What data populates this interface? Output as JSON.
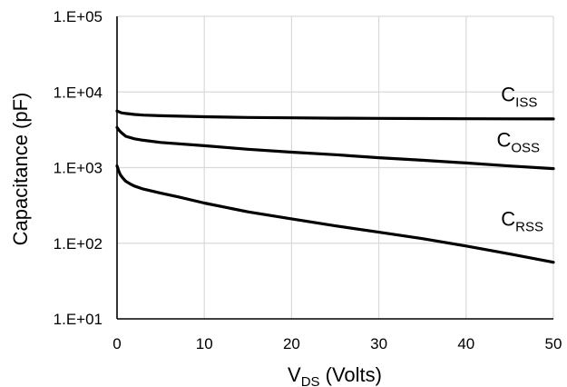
{
  "chart_data": {
    "type": "line",
    "xlabel": {
      "main": "V",
      "sub": "DS",
      "rest": " (Volts)"
    },
    "ylabel": "Capacitance (pF)",
    "xlim": [
      0,
      50
    ],
    "ylim": [
      10,
      100000
    ],
    "yscale": "log",
    "grid": true,
    "x_ticks": [
      "0",
      "10",
      "20",
      "30",
      "40",
      "50"
    ],
    "y_ticks": [
      "1.E+01",
      "1.E+02",
      "1.E+03",
      "1.E+04",
      "1.E+05"
    ],
    "series": [
      {
        "name": {
          "main": "C",
          "sub": "ISS"
        },
        "label_at": [
          44,
          7500
        ],
        "x": [
          0,
          0.5,
          1,
          2,
          3,
          5,
          10,
          15,
          20,
          25,
          30,
          35,
          40,
          45,
          50
        ],
        "values": [
          5600,
          5300,
          5200,
          5050,
          4950,
          4850,
          4700,
          4600,
          4550,
          4500,
          4480,
          4450,
          4430,
          4420,
          4400
        ]
      },
      {
        "name": {
          "main": "C",
          "sub": "OSS"
        },
        "label_at": [
          43.5,
          1900
        ],
        "x": [
          0,
          0.25,
          0.5,
          1,
          2,
          3,
          5,
          10,
          15,
          20,
          25,
          30,
          35,
          40,
          45,
          50
        ],
        "values": [
          3400,
          3100,
          2900,
          2600,
          2400,
          2300,
          2150,
          1950,
          1750,
          1600,
          1480,
          1350,
          1250,
          1150,
          1050,
          970
        ]
      },
      {
        "name": {
          "main": "C",
          "sub": "RSS"
        },
        "label_at": [
          44,
          170
        ],
        "x": [
          0,
          0.2,
          0.4,
          0.7,
          1,
          1.5,
          2,
          3,
          5,
          7,
          10,
          15,
          20,
          25,
          30,
          35,
          40,
          45,
          50
        ],
        "values": [
          1050,
          900,
          800,
          720,
          660,
          610,
          570,
          520,
          460,
          410,
          340,
          260,
          210,
          170,
          140,
          115,
          92,
          72,
          56
        ]
      }
    ]
  }
}
